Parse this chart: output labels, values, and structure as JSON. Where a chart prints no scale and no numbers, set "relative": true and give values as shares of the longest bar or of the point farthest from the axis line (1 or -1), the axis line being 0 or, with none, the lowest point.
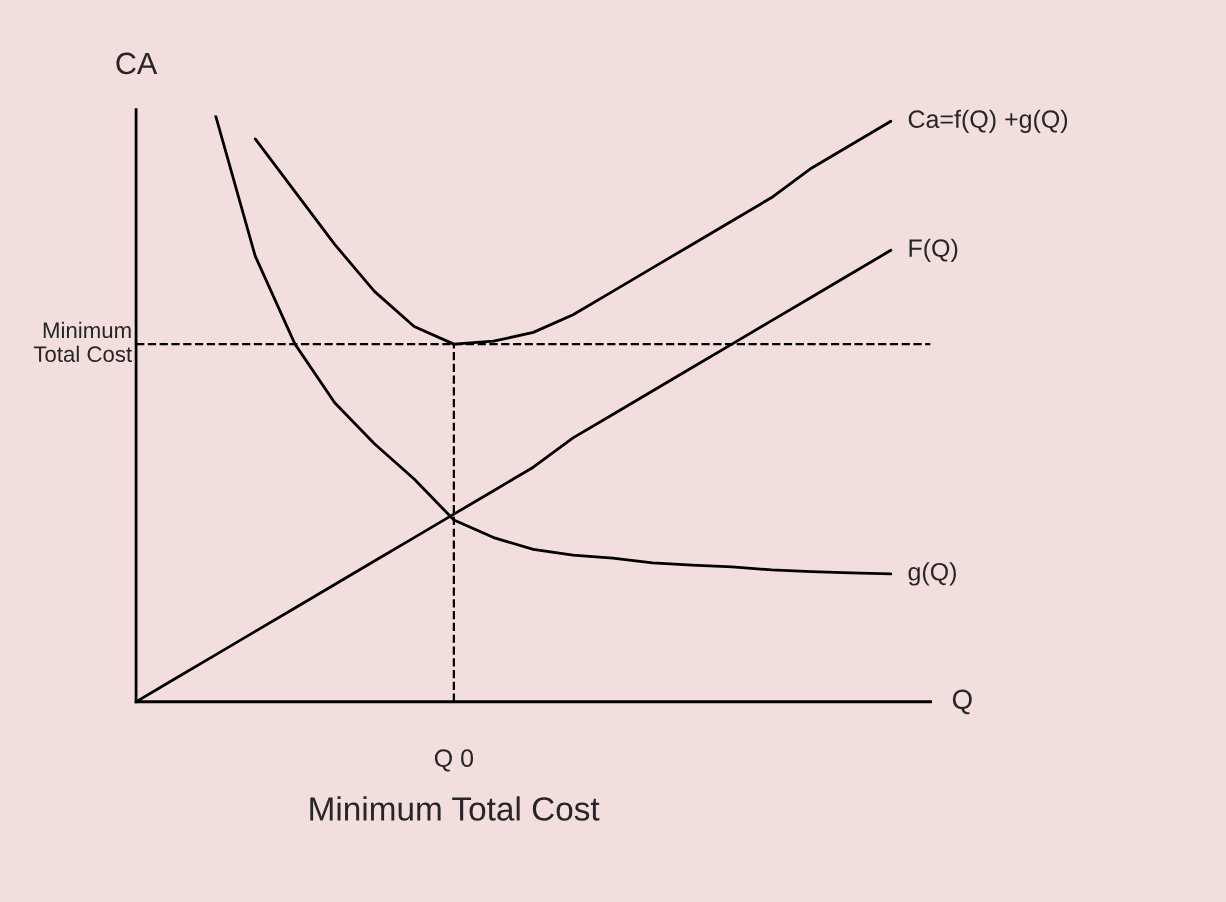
{
  "chart_data": {
    "type": "line",
    "relative": true,
    "ylabel": "CA",
    "xlabel": "Q",
    "annotations": [
      "Minimum Total Cost",
      "Q 0"
    ],
    "marker": "none",
    "line_style": "solid",
    "categories": [
      null,
      null,
      null,
      null,
      null,
      null,
      null,
      null,
      null,
      null,
      null,
      null,
      null,
      null,
      null,
      null,
      null,
      null,
      null,
      null,
      null
    ],
    "series": [
      {
        "name": "Ca=f(Q) +g(Q)",
        "color": "#000000",
        "values": [
          null,
          null,
          null,
          0.96,
          0.87,
          0.78,
          0.7,
          0.64,
          0.61,
          0.615,
          0.63,
          0.66,
          0.7,
          0.74,
          0.78,
          0.82,
          0.86,
          0.91,
          0.95,
          0.99,
          null
        ]
      },
      {
        "name": "F(Q)",
        "color": "#000000",
        "values": [
          0,
          0.04,
          0.08,
          0.12,
          0.16,
          0.2,
          0.24,
          0.28,
          0.32,
          0.36,
          0.4,
          0.45,
          0.49,
          0.53,
          0.57,
          0.61,
          0.65,
          0.69,
          0.73,
          0.77,
          null
        ]
      },
      {
        "name": "g(Q)",
        "color": "#000000",
        "values": [
          null,
          null,
          1.0,
          0.76,
          0.61,
          0.51,
          0.44,
          0.38,
          0.31,
          0.28,
          0.26,
          0.25,
          0.245,
          0.237,
          0.233,
          0.23,
          0.225,
          0.222,
          0.22,
          0.218,
          null
        ]
      }
    ],
    "ref_lines": [
      {
        "axis": "y",
        "value": 0.61,
        "label": "Minimum\nTotal Cost",
        "color": "#000000",
        "line_style": "dashed"
      }
    ]
  }
}
